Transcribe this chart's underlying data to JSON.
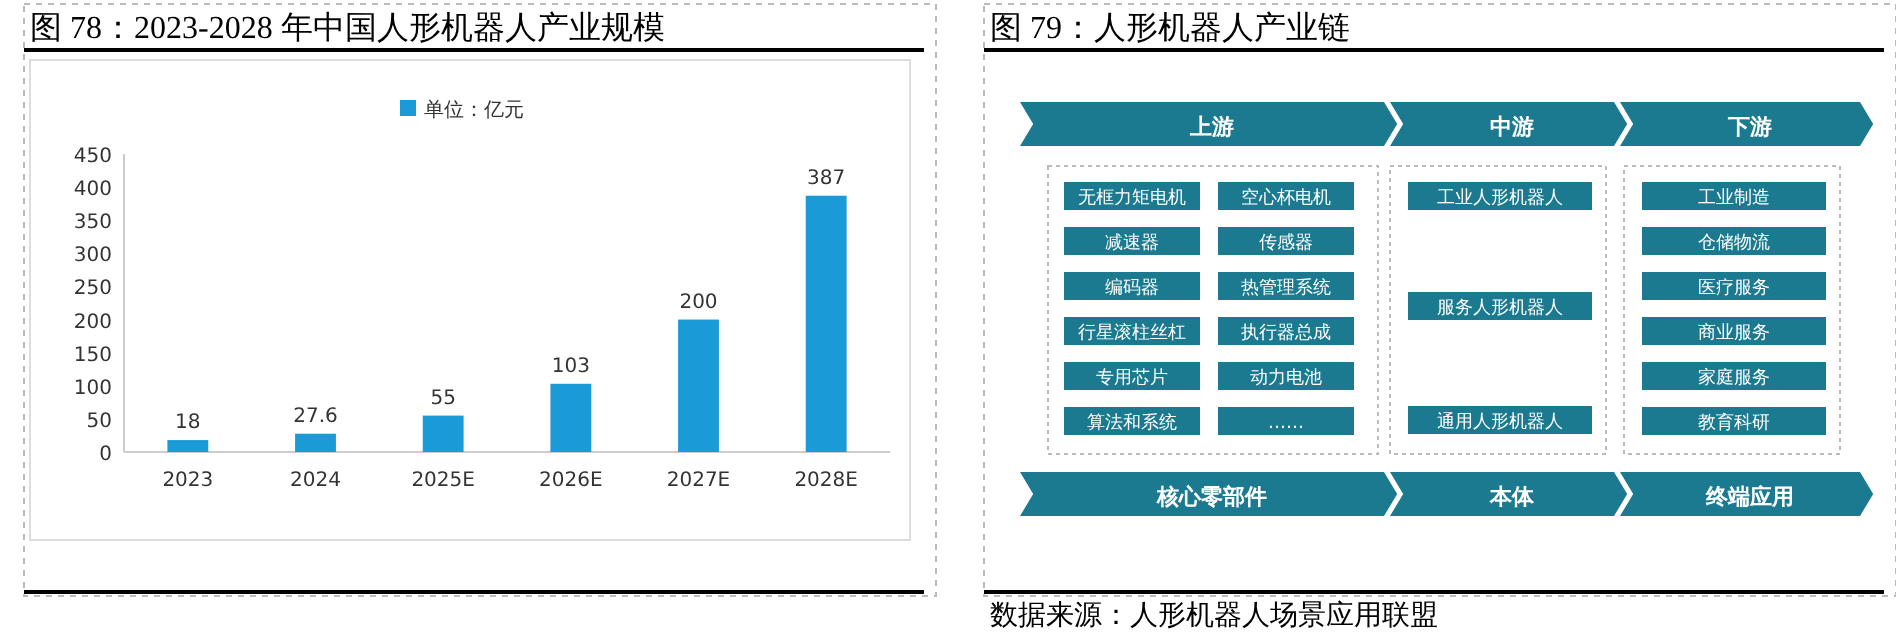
{
  "chart_data": [
    {
      "type": "bar",
      "title": "图 78：2023-2028 年中国人形机器人产业规模",
      "categories": [
        "2023",
        "2024",
        "2025E",
        "2026E",
        "2027E",
        "2028E"
      ],
      "series": [
        {
          "name": "单位：亿元",
          "color": "#1a9ad6",
          "values": [
            18,
            27.6,
            55,
            103,
            200,
            387
          ]
        }
      ],
      "ylim": [
        0,
        450
      ],
      "yticks": [
        0,
        50,
        100,
        150,
        200,
        250,
        300,
        350,
        400,
        450
      ],
      "data_labels": true,
      "legend": "top",
      "grid": false
    },
    {
      "type": "other",
      "title": "图 79：人形机器人产业链",
      "annotations": [
        "上游",
        "中游",
        "下游",
        "无框力矩电机",
        "空心杯电机",
        "减速器",
        "传感器",
        "编码器",
        "热管理系统",
        "行星滚柱丝杠",
        "执行器总成",
        "专用芯片",
        "动力电池",
        "算法和系统",
        "……",
        "工业人形机器人",
        "服务人形机器人",
        "通用人形机器人",
        "工业制造",
        "仓储物流",
        "医疗服务",
        "商业服务",
        "家庭服务",
        "教育科研",
        "核心零部件",
        "本体",
        "终端应用",
        "数据来源：人形机器人场景应用联盟"
      ]
    }
  ]
}
